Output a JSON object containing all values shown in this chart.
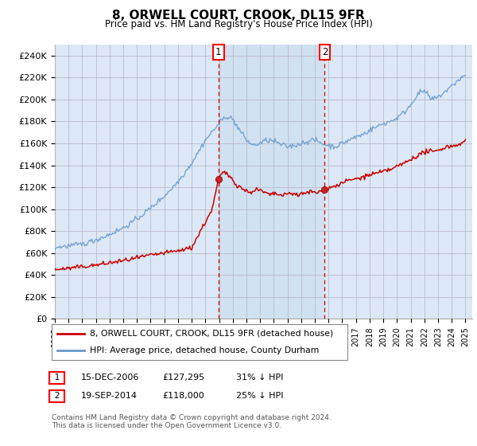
{
  "title": "8, ORWELL COURT, CROOK, DL15 9FR",
  "subtitle": "Price paid vs. HM Land Registry's House Price Index (HPI)",
  "ylabel_ticks": [
    "£0",
    "£20K",
    "£40K",
    "£60K",
    "£80K",
    "£100K",
    "£120K",
    "£140K",
    "£160K",
    "£180K",
    "£200K",
    "£220K",
    "£240K"
  ],
  "ytick_values": [
    0,
    20000,
    40000,
    60000,
    80000,
    100000,
    120000,
    140000,
    160000,
    180000,
    200000,
    220000,
    240000
  ],
  "ylim": [
    0,
    250000
  ],
  "xlim_start": 1995.0,
  "xlim_end": 2025.5,
  "sale1_x": 2006.96,
  "sale1_y": 127295,
  "sale2_x": 2014.72,
  "sale2_y": 118000,
  "legend_label_red": "8, ORWELL COURT, CROOK, DL15 9FR (detached house)",
  "legend_label_blue": "HPI: Average price, detached house, County Durham",
  "table_row1_label": "1",
  "table_row1_date": "15-DEC-2006",
  "table_row1_price": "£127,295",
  "table_row1_hpi": "31% ↓ HPI",
  "table_row2_label": "2",
  "table_row2_date": "19-SEP-2014",
  "table_row2_price": "£118,000",
  "table_row2_hpi": "25% ↓ HPI",
  "footnote": "Contains HM Land Registry data © Crown copyright and database right 2024.\nThis data is licensed under the Open Government Licence v3.0.",
  "background_color": "#ffffff",
  "plot_bg_color": "#dce8f5",
  "shade_color": "#c8dcf0",
  "grid_color": "#bbbbcc",
  "red_color": "#cc0000",
  "blue_color": "#6699cc",
  "vline_color": "#cc0000",
  "marker_fill": "#cc2222"
}
